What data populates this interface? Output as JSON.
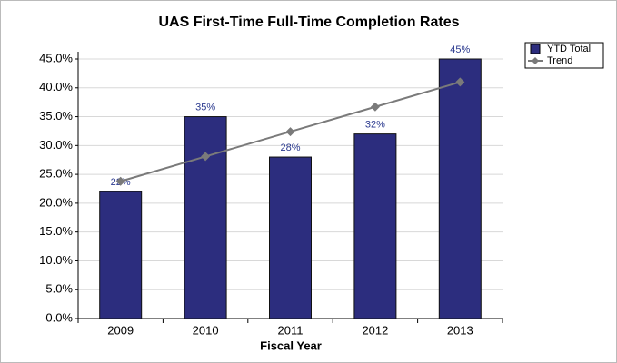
{
  "chart_data": {
    "type": "bar",
    "title": "UAS First-Time Full-Time Completion Rates",
    "x_label": "Fiscal Year",
    "categories": [
      "2009",
      "2010",
      "2011",
      "2012",
      "2013"
    ],
    "series": [
      {
        "name": "YTD Total",
        "type": "bar",
        "color": "#2c2d7e",
        "values": [
          22,
          35,
          28,
          32,
          45
        ],
        "value_labels": [
          "22%",
          "35%",
          "28%",
          "32%",
          "45%"
        ]
      },
      {
        "name": "Trend",
        "type": "line",
        "color": "#7a7a7a",
        "values": [
          23.8,
          28.1,
          32.4,
          36.7,
          41.0
        ]
      }
    ],
    "ylim": [
      0,
      45
    ],
    "yticks": [
      {
        "value": 0,
        "label": "0.0%"
      },
      {
        "value": 5,
        "label": "5.0%"
      },
      {
        "value": 10,
        "label": "10.0%"
      },
      {
        "value": 15,
        "label": "15.0%"
      },
      {
        "value": 20,
        "label": "20.0%"
      },
      {
        "value": 25,
        "label": "25.0%"
      },
      {
        "value": 30,
        "label": "30.0%"
      },
      {
        "value": 35,
        "label": "35.0%"
      },
      {
        "value": 40,
        "label": "40.0%"
      },
      {
        "value": 45,
        "label": "45.0%"
      }
    ],
    "grid": true,
    "legend": "top-right"
  }
}
